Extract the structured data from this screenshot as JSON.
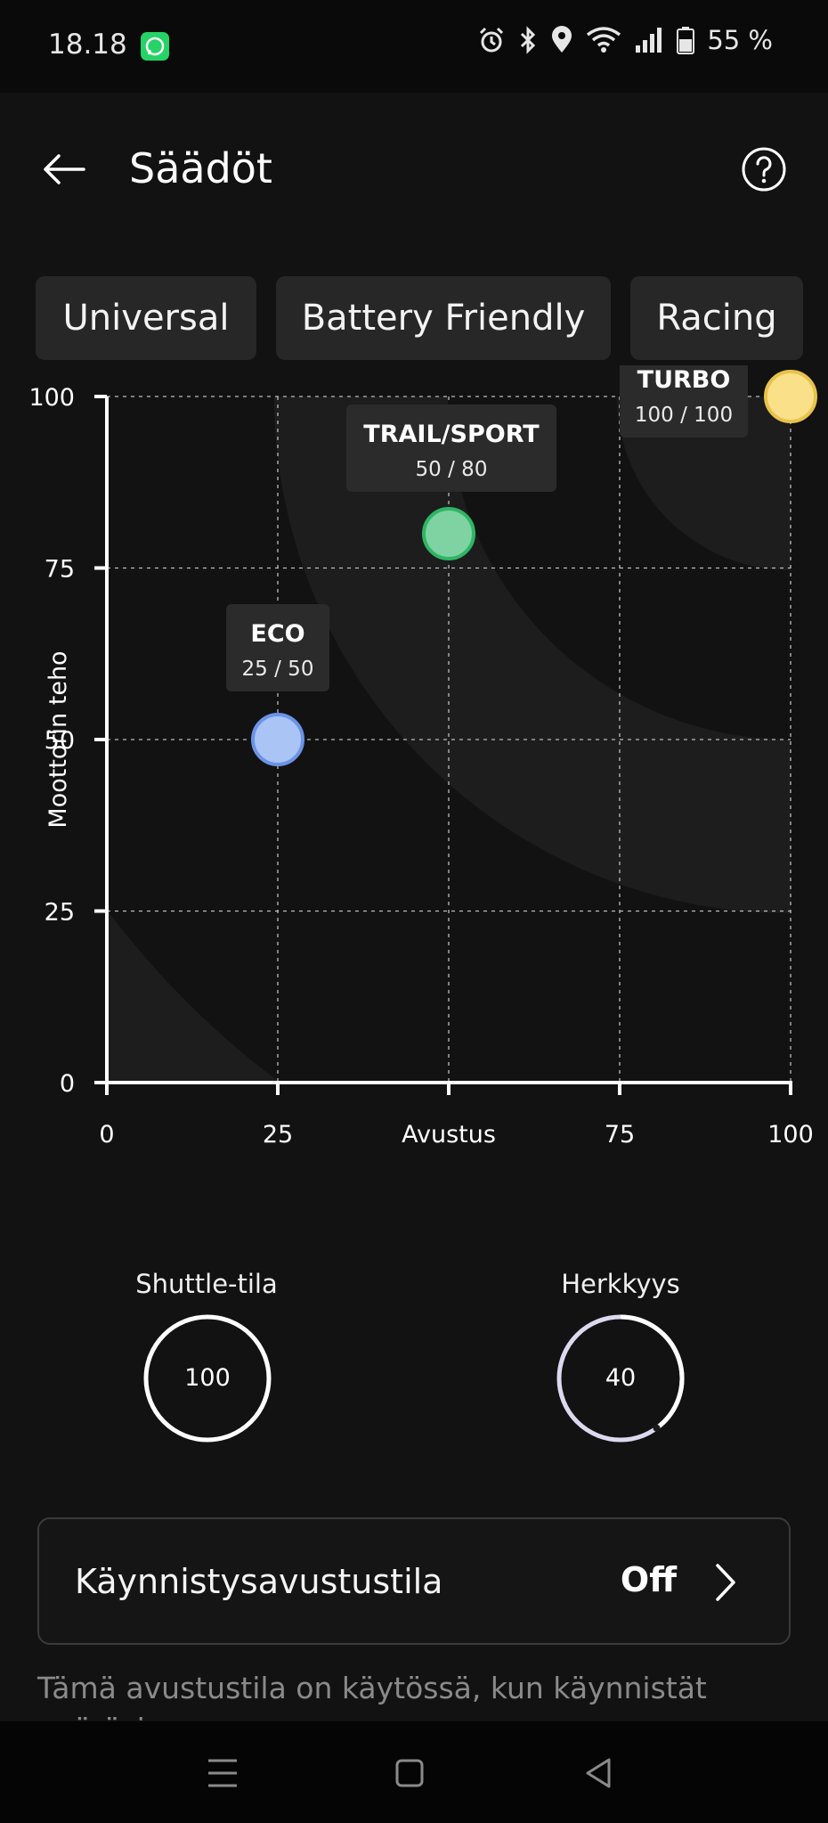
{
  "status": {
    "time": "18.18",
    "battery": "55 %",
    "icons": [
      "whatsapp-icon",
      "alarm-icon",
      "bluetooth-icon",
      "location-icon",
      "wifi-icon",
      "signal-icon",
      "battery-icon"
    ]
  },
  "header": {
    "title": "Säädöt",
    "back_icon": "arrow-left-icon",
    "help_icon": "help-circle-icon"
  },
  "tabs": [
    {
      "label": "Universal"
    },
    {
      "label": "Battery Friendly"
    },
    {
      "label": "Racing"
    }
  ],
  "chart_data": {
    "type": "scatter",
    "xlabel": "Avustus",
    "ylabel": "Moottorin teho",
    "xlim": [
      0,
      100
    ],
    "ylim": [
      0,
      100
    ],
    "x_ticks": [
      "0",
      "25",
      "Avustus",
      "75",
      "100"
    ],
    "y_ticks": [
      "0",
      "25",
      "50",
      "75",
      "100"
    ],
    "grid": true,
    "points": [
      {
        "name": "ECO",
        "x": 25,
        "y": 50,
        "label": "25 / 50",
        "color": "#a9c4f5",
        "stroke": "#6b93e8"
      },
      {
        "name": "TRAIL/SPORT",
        "x": 50,
        "y": 80,
        "label": "50 / 80",
        "color": "#7fd3a2",
        "stroke": "#2fb565"
      },
      {
        "name": "TURBO",
        "x": 100,
        "y": 100,
        "label": "100 / 100",
        "color": "#fbe08a",
        "stroke": "#e8c24a"
      }
    ]
  },
  "dials": [
    {
      "label": "Shuttle-tila",
      "value": "100",
      "fraction": 1.0
    },
    {
      "label": "Herkkyys",
      "value": "40",
      "fraction": 0.4
    }
  ],
  "start_assist": {
    "label": "Käynnistysavustustila",
    "value": "Off",
    "chevron_icon": "chevron-right-icon"
  },
  "note": "Tämä avustustila on käytössä, kun käynnistät pyöräsi",
  "navbar": {
    "icons": [
      "menu-icon",
      "home-square-icon",
      "back-triangle-icon"
    ]
  }
}
